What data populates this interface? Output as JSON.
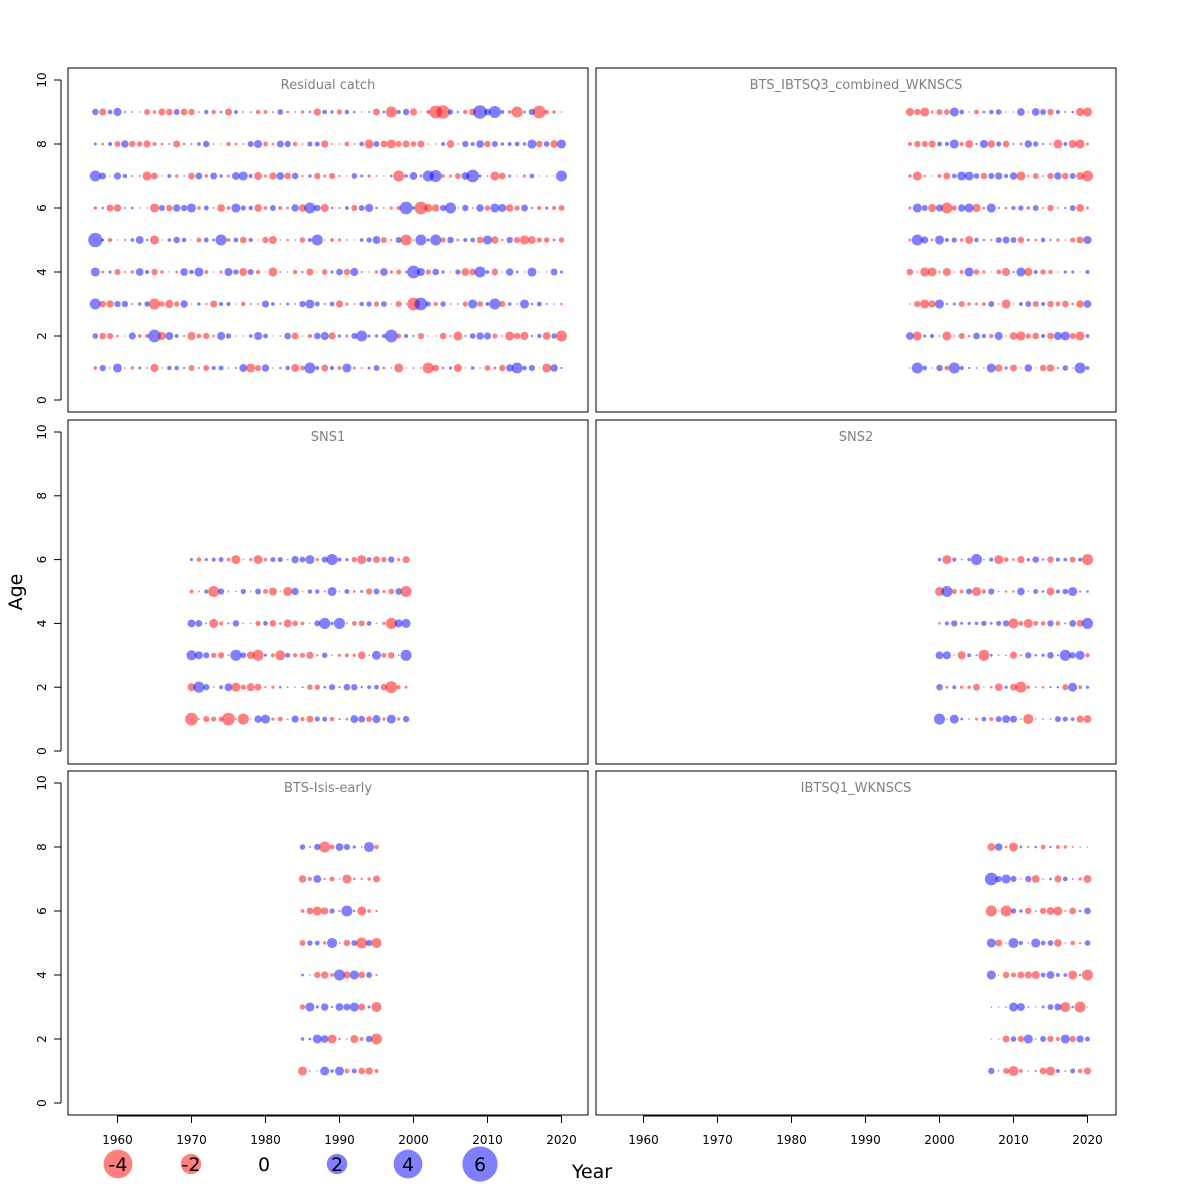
{
  "chart_data": {
    "type": "scatter",
    "subtype": "bubble-residuals",
    "xlabel": "Year",
    "ylabel": "Age",
    "xlim": [
      1953,
      2024
    ],
    "ylim": [
      -0.4,
      10.4
    ],
    "x_ticks": [
      1960,
      1970,
      1980,
      1990,
      2000,
      2010,
      2020
    ],
    "y_ticks": [
      0,
      2,
      4,
      6,
      8,
      10
    ],
    "colors": {
      "positive": "#0000ff",
      "negative": "#ff0000",
      "alpha": 0.5
    },
    "legend": {
      "placement": "bottom",
      "values": [
        -4,
        -2,
        0,
        2,
        4,
        6
      ],
      "labels": [
        "-4",
        "-2",
        "0",
        "2",
        "4",
        "6"
      ]
    },
    "panels": [
      {
        "title": "Residual catch",
        "years": [
          1957,
          2020
        ],
        "ages": [
          1,
          9
        ],
        "residuals": {
          "9": [
            [
              1957,
              1
            ],
            [
              1966,
              -1.2
            ],
            [
              1970,
              -1
            ],
            [
              1997,
              -3
            ],
            [
              2003,
              -4
            ],
            [
              2004,
              -4.5
            ],
            [
              2009,
              4.5
            ],
            [
              2011,
              3.5
            ],
            [
              2014,
              -3
            ],
            [
              2017,
              -4
            ]
          ],
          "8": [
            [
              1962,
              -1
            ],
            [
              1983,
              1
            ],
            [
              1994,
              -2
            ],
            [
              1997,
              -2
            ],
            [
              2016,
              2
            ],
            [
              2020,
              2
            ]
          ],
          "7": [
            [
              1957,
              3
            ],
            [
              1964,
              -2
            ],
            [
              1977,
              2
            ],
            [
              1987,
              -1
            ],
            [
              1998,
              -3
            ],
            [
              2002,
              3
            ],
            [
              2003,
              3.5
            ],
            [
              2008,
              4
            ],
            [
              2011,
              -2
            ],
            [
              2020,
              3
            ]
          ],
          "6": [
            [
              1965,
              -2
            ],
            [
              1970,
              2
            ],
            [
              1976,
              2
            ],
            [
              1986,
              3
            ],
            [
              1999,
              4
            ],
            [
              2001,
              -4
            ],
            [
              2005,
              3
            ],
            [
              2011,
              2
            ]
          ],
          "5": [
            [
              1957,
              5
            ],
            [
              1965,
              -2
            ],
            [
              1974,
              3
            ],
            [
              1987,
              3
            ],
            [
              1999,
              -3
            ],
            [
              2001,
              3
            ],
            [
              2003,
              3
            ],
            [
              2010,
              2
            ],
            [
              2015,
              -2
            ]
          ],
          "4": [
            [
              1957,
              2
            ],
            [
              1971,
              2
            ],
            [
              1981,
              -2
            ],
            [
              2000,
              4
            ],
            [
              2009,
              3
            ],
            [
              2016,
              2
            ]
          ],
          "3": [
            [
              1957,
              3
            ],
            [
              1965,
              -3
            ],
            [
              1986,
              2
            ],
            [
              2000,
              -4
            ],
            [
              2001,
              4
            ],
            [
              2008,
              2
            ],
            [
              2011,
              3
            ],
            [
              2015,
              2
            ]
          ],
          "2": [
            [
              1965,
              4
            ],
            [
              1993,
              3
            ],
            [
              1997,
              4
            ],
            [
              2006,
              -2
            ],
            [
              2013,
              -2
            ],
            [
              2020,
              -3
            ]
          ],
          "1": [
            [
              1960,
              2
            ],
            [
              1978,
              -2
            ],
            [
              1986,
              3
            ],
            [
              1991,
              2
            ],
            [
              1998,
              -2
            ],
            [
              2002,
              -3
            ],
            [
              2014,
              3
            ],
            [
              2018,
              -2
            ]
          ]
        }
      },
      {
        "title": "BTS_IBTSQ3_combined_WKNSCS",
        "years": [
          1996,
          2020
        ],
        "ages": [
          1,
          9
        ],
        "residuals": {
          "9": [
            [
              1998,
              -2
            ],
            [
              2002,
              2
            ],
            [
              2020,
              -2
            ]
          ],
          "8": [
            [
              1997,
              -1
            ],
            [
              2002,
              2
            ],
            [
              2016,
              -2
            ],
            [
              2019,
              -2
            ]
          ],
          "7": [
            [
              1997,
              -2
            ],
            [
              2003,
              2
            ],
            [
              2004,
              2
            ],
            [
              2011,
              -2
            ],
            [
              2020,
              -3
            ]
          ],
          "6": [
            [
              1997,
              2
            ],
            [
              2001,
              -3
            ],
            [
              2004,
              2
            ],
            [
              2007,
              2
            ],
            [
              2019,
              -1.5
            ]
          ],
          "5": [
            [
              1997,
              3
            ],
            [
              2000,
              2
            ],
            [
              2011,
              -1
            ]
          ],
          "4": [
            [
              1998,
              -2
            ],
            [
              1999,
              -2
            ],
            [
              2004,
              2
            ],
            [
              2011,
              2
            ]
          ],
          "3": [
            [
              1998,
              -2
            ],
            [
              2000,
              2
            ],
            [
              2009,
              -2
            ],
            [
              2020,
              1.5
            ]
          ],
          "2": [
            [
              1997,
              -2
            ],
            [
              2001,
              -2
            ],
            [
              2011,
              -2
            ],
            [
              2017,
              2
            ],
            [
              2019,
              -2
            ]
          ],
          "1": [
            [
              1997,
              3
            ],
            [
              2002,
              3
            ],
            [
              2007,
              2
            ],
            [
              2014,
              -1
            ],
            [
              2019,
              3
            ]
          ]
        }
      },
      {
        "title": "SNS1",
        "years": [
          1970,
          1999
        ],
        "ages": [
          1,
          6
        ],
        "residuals": {
          "6": [
            [
              1976,
              -2
            ],
            [
              1979,
              -2
            ],
            [
              1986,
              2
            ],
            [
              1989,
              3
            ],
            [
              1993,
              -2
            ],
            [
              1997,
              1
            ]
          ],
          "5": [
            [
              1973,
              -3
            ],
            [
              1983,
              -2
            ],
            [
              1989,
              2
            ],
            [
              1999,
              -3
            ]
          ],
          "4": [
            [
              1970,
              1.5
            ],
            [
              1973,
              -2
            ],
            [
              1988,
              3
            ],
            [
              1990,
              3
            ],
            [
              1997,
              -3
            ],
            [
              1999,
              2
            ]
          ],
          "3": [
            [
              1970,
              2.5
            ],
            [
              1976,
              3
            ],
            [
              1979,
              -3
            ],
            [
              1982,
              -2.5
            ],
            [
              1995,
              2
            ],
            [
              1999,
              3
            ]
          ],
          "2": [
            [
              1971,
              3
            ],
            [
              1976,
              -2
            ],
            [
              1992,
              1
            ],
            [
              1997,
              -3.5
            ]
          ],
          "1": [
            [
              1970,
              -4
            ],
            [
              1975,
              -4
            ],
            [
              1977,
              -3
            ],
            [
              1980,
              2
            ],
            [
              1992,
              1.5
            ],
            [
              1997,
              2
            ],
            [
              1999,
              1
            ]
          ]
        }
      },
      {
        "title": "SNS2",
        "years": [
          2000,
          2020
        ],
        "ages": [
          1,
          6
        ],
        "residuals": {
          "6": [
            [
              2001,
              -2
            ],
            [
              2005,
              3
            ],
            [
              2008,
              -2
            ],
            [
              2020,
              -3
            ]
          ],
          "5": [
            [
              2000,
              -2
            ],
            [
              2001,
              3
            ],
            [
              2005,
              -2
            ],
            [
              2018,
              2
            ]
          ],
          "4": [
            [
              2002,
              1
            ],
            [
              2010,
              -2.5
            ],
            [
              2012,
              -2
            ],
            [
              2020,
              3
            ]
          ],
          "3": [
            [
              2000,
              1.5
            ],
            [
              2006,
              -3
            ],
            [
              2017,
              3
            ],
            [
              2019,
              2
            ]
          ],
          "2": [
            [
              2000,
              1
            ],
            [
              2011,
              -3
            ],
            [
              2018,
              2
            ]
          ],
          "1": [
            [
              2000,
              3
            ],
            [
              2002,
              2
            ],
            [
              2012,
              -2.5
            ],
            [
              2020,
              -1.5
            ]
          ]
        }
      },
      {
        "title": "BTS-Isis-early",
        "years": [
          1985,
          1995
        ],
        "ages": [
          1,
          8
        ],
        "residuals": {
          "8": [
            [
              1988,
              -3
            ],
            [
              1990,
              1.5
            ],
            [
              1994,
              2.5
            ]
          ],
          "7": [
            [
              1987,
              1.5
            ],
            [
              1991,
              -2
            ]
          ],
          "6": [
            [
              1987,
              -2
            ],
            [
              1991,
              3
            ],
            [
              1993,
              -2
            ]
          ],
          "5": [
            [
              1989,
              2.5
            ],
            [
              1993,
              -3
            ],
            [
              1995,
              -2.5
            ]
          ],
          "4": [
            [
              1987,
              -1
            ],
            [
              1990,
              3
            ],
            [
              1992,
              2
            ]
          ],
          "3": [
            [
              1986,
              2
            ],
            [
              1992,
              2
            ],
            [
              1995,
              -2.5
            ]
          ],
          "2": [
            [
              1987,
              2
            ],
            [
              1989,
              -2
            ],
            [
              1995,
              -3
            ]
          ],
          "1": [
            [
              1985,
              -2
            ],
            [
              1988,
              2
            ],
            [
              1990,
              2
            ]
          ]
        }
      },
      {
        "title": "IBTSQ1_WKNSCS",
        "years": [
          2007,
          2020
        ],
        "ages": [
          1,
          8
        ],
        "residuals": {
          "8": [
            [
              2007,
              -1.5
            ],
            [
              2010,
              -2
            ]
          ],
          "7": [
            [
              2007,
              4
            ],
            [
              2009,
              2
            ],
            [
              2013,
              -1.5
            ]
          ],
          "6": [
            [
              2007,
              -3
            ],
            [
              2009,
              -3
            ],
            [
              2016,
              -2
            ]
          ],
          "5": [
            [
              2007,
              2
            ],
            [
              2010,
              2.5
            ],
            [
              2013,
              2
            ]
          ],
          "4": [
            [
              2007,
              2
            ],
            [
              2018,
              -2
            ],
            [
              2020,
              -3
            ]
          ],
          "3": [
            [
              2010,
              2
            ],
            [
              2017,
              -2.5
            ],
            [
              2019,
              -3
            ]
          ],
          "2": [
            [
              2012,
              2
            ],
            [
              2017,
              2
            ]
          ],
          "1": [
            [
              2007,
              1
            ],
            [
              2010,
              -2.5
            ],
            [
              2015,
              -2
            ]
          ]
        }
      }
    ]
  }
}
